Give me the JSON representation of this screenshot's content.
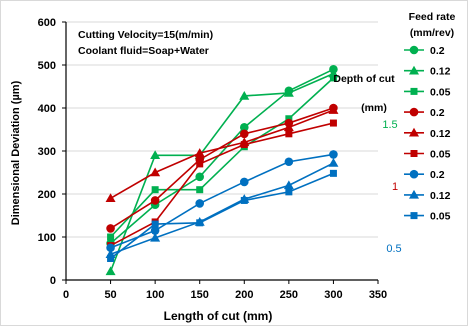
{
  "chart_data": {
    "type": "line",
    "xlabel": "Length of cut (mm)",
    "ylabel": "Dimensional Deviation (µm)",
    "xlim": [
      0,
      350
    ],
    "ylim": [
      0,
      600
    ],
    "x_ticks": [
      0,
      50,
      100,
      150,
      200,
      250,
      300,
      350
    ],
    "y_ticks": [
      0,
      100,
      200,
      300,
      400,
      500,
      600
    ],
    "grid": "horizontal",
    "annotations": [
      "Cutting Velocity=15(m/min)",
      "Coolant fluid=Soap+Water"
    ],
    "legend_title": [
      "Feed rate",
      "(mm/rev)"
    ],
    "legend_side_title": [
      "Depth of cut",
      "(mm)"
    ],
    "legend_position": "right",
    "groups": [
      {
        "label": "1.5",
        "color": "#00b050"
      },
      {
        "label": "1",
        "color": "#c00000"
      },
      {
        "label": "0.5",
        "color": "#0070c0"
      }
    ],
    "x": [
      50,
      100,
      150,
      200,
      250,
      300
    ],
    "series": [
      {
        "name": "0.2",
        "color": "#00b050",
        "marker": "circle",
        "values": [
          85,
          175,
          240,
          355,
          440,
          490
        ]
      },
      {
        "name": "0.12",
        "color": "#00b050",
        "marker": "triangle",
        "values": [
          20,
          290,
          290,
          428,
          435,
          480
        ]
      },
      {
        "name": "0.05",
        "color": "#00b050",
        "marker": "square",
        "values": [
          100,
          210,
          210,
          310,
          375,
          470
        ]
      },
      {
        "name": "0.2",
        "color": "#c00000",
        "marker": "circle",
        "values": [
          120,
          185,
          280,
          340,
          365,
          400
        ]
      },
      {
        "name": "0.12",
        "color": "#c00000",
        "marker": "triangle",
        "values": [
          190,
          250,
          295,
          320,
          355,
          395
        ]
      },
      {
        "name": "0.05",
        "color": "#c00000",
        "marker": "square",
        "values": [
          80,
          135,
          270,
          315,
          340,
          365
        ]
      },
      {
        "name": "0.2",
        "color": "#0070c0",
        "marker": "circle",
        "values": [
          75,
          115,
          178,
          228,
          275,
          292
        ]
      },
      {
        "name": "0.12",
        "color": "#0070c0",
        "marker": "triangle",
        "values": [
          60,
          98,
          135,
          188,
          220,
          272
        ]
      },
      {
        "name": "0.05",
        "color": "#0070c0",
        "marker": "square",
        "values": [
          50,
          130,
          133,
          185,
          205,
          248
        ]
      }
    ]
  }
}
